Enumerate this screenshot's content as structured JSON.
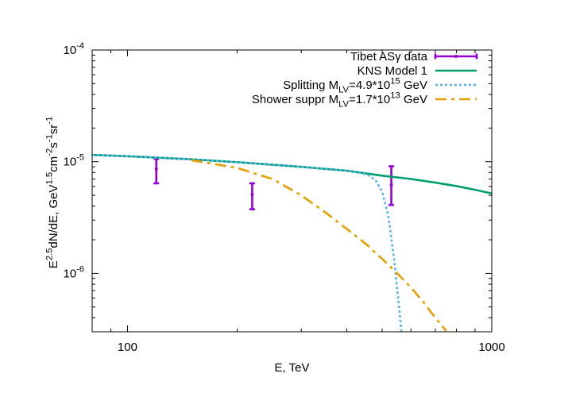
{
  "chart_data": {
    "type": "line",
    "title": "",
    "xlabel": "E, TeV",
    "ylabel": {
      "parts": [
        {
          "text": "E",
          "shift": "base"
        },
        {
          "text": "2.5",
          "shift": "sup"
        },
        {
          "text": "dN/dE,  GeV",
          "shift": "base"
        },
        {
          "text": "1.5",
          "shift": "sup"
        },
        {
          "text": "cm",
          "shift": "base"
        },
        {
          "text": "-2",
          "shift": "sup"
        },
        {
          "text": "s",
          "shift": "base"
        },
        {
          "text": "-1",
          "shift": "sup"
        },
        {
          "text": "sr",
          "shift": "base"
        },
        {
          "text": "-1",
          "shift": "sup"
        }
      ]
    },
    "xscale": "log",
    "yscale": "log",
    "xlim": [
      80,
      1000
    ],
    "ylim": [
      3e-07,
      0.0001
    ],
    "grid": false,
    "legend_position": "top-right",
    "x_ticks": [
      {
        "value": 100,
        "label": "100"
      },
      {
        "value": 1000,
        "label": "1000"
      }
    ],
    "y_ticks": [
      {
        "value": 1e-06,
        "base": "10",
        "exp": "-6"
      },
      {
        "value": 1e-05,
        "base": "10",
        "exp": "-5"
      },
      {
        "value": 0.0001,
        "base": "10",
        "exp": "-4"
      }
    ],
    "series": [
      {
        "name": "Tibet ASγ data",
        "legend_parts": [
          {
            "text": "Tibet ASγ data",
            "shift": "base"
          }
        ],
        "kind": "errorbar",
        "color": "#9400d3",
        "points": [
          {
            "x": 120,
            "y": 8.6e-06,
            "ylo": 6.4e-06,
            "yhi": 1.06e-05
          },
          {
            "x": 220,
            "y": 5.1e-06,
            "ylo": 3.75e-06,
            "yhi": 6.4e-06
          },
          {
            "x": 530,
            "y": 6.2e-06,
            "ylo": 4.1e-06,
            "yhi": 9.1e-06
          }
        ]
      },
      {
        "name": "KNS Model 1",
        "legend_parts": [
          {
            "text": "KNS Model 1",
            "shift": "base"
          }
        ],
        "kind": "line",
        "color": "#009e73",
        "dash": "solid",
        "x": [
          80,
          100,
          150,
          200,
          300,
          400,
          500,
          600,
          700,
          800,
          900,
          1000
        ],
        "y": [
          1.15e-05,
          1.12e-05,
          1.05e-05,
          9.9e-06,
          9e-06,
          8.3e-06,
          7.5e-06,
          7e-06,
          6.5e-06,
          6.05e-06,
          5.6e-06,
          5.2e-06
        ]
      },
      {
        "name": "Splitting M_LV=4.9*10^15 GeV",
        "legend_parts": [
          {
            "text": "Splitting M",
            "shift": "base"
          },
          {
            "text": "LV",
            "shift": "sub"
          },
          {
            "text": "=4.9*10",
            "shift": "base"
          },
          {
            "text": "15",
            "shift": "sup"
          },
          {
            "text": " GeV",
            "shift": "base"
          }
        ],
        "kind": "line",
        "color": "#56b4e9",
        "dash": "dotted",
        "x": [
          80,
          100,
          150,
          200,
          300,
          400,
          440,
          460,
          480,
          500,
          520,
          540,
          555,
          565
        ],
        "y": [
          1.15e-05,
          1.12e-05,
          1.05e-05,
          9.9e-06,
          9e-06,
          8.3e-06,
          7.9e-06,
          7.5e-06,
          6.8e-06,
          5.4e-06,
          3.3e-06,
          1.3e-06,
          5.5e-07,
          3e-07
        ]
      },
      {
        "name": "Shower suppr M_LV=1.7*10^13 GeV",
        "legend_parts": [
          {
            "text": "Shower suppr M",
            "shift": "base"
          },
          {
            "text": "LV",
            "shift": "sub"
          },
          {
            "text": "=1.7*10",
            "shift": "base"
          },
          {
            "text": "13",
            "shift": "sup"
          },
          {
            "text": " GeV",
            "shift": "base"
          }
        ],
        "kind": "line",
        "color": "#e69f00",
        "dash": "dashdot",
        "x": [
          150,
          200,
          250,
          300,
          350,
          400,
          450,
          500,
          550,
          600,
          650,
          700,
          750
        ],
        "y": [
          1.03e-05,
          8.8e-06,
          7e-06,
          5e-06,
          3.5e-06,
          2.5e-06,
          1.85e-06,
          1.35e-06,
          1e-06,
          7.5e-07,
          5.5e-07,
          4e-07,
          3.05e-07
        ]
      }
    ]
  }
}
